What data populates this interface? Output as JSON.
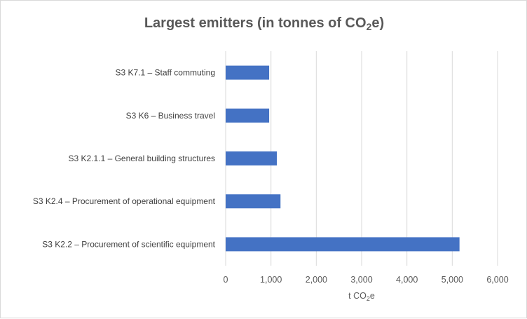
{
  "chart_data": {
    "type": "bar",
    "orientation": "horizontal",
    "title_prefix": "Largest emitters (in tonnes of CO",
    "title_sub": "2",
    "title_suffix": "e)",
    "xlabel_prefix": "t CO",
    "xlabel_sub": "2",
    "xlabel_suffix": "e",
    "ylabel": "",
    "categories": [
      "S3 K7.1 – Staff commuting",
      "S3 K6 – Business travel",
      "S3 K2.1.1 – General building structures",
      "S3 K2.4 – Procurement of operational equipment",
      "S3 K2.2 – Procurement of scientific equipment"
    ],
    "values": [
      960,
      960,
      1130,
      1210,
      5160
    ],
    "xlim": [
      0,
      6000
    ],
    "xticks": [
      0,
      1000,
      2000,
      3000,
      4000,
      5000,
      6000
    ],
    "xtick_labels": [
      "0",
      "1,000",
      "2,000",
      "3,000",
      "4,000",
      "5,000",
      "6,000"
    ],
    "grid": "vertical",
    "legend": "none",
    "bar_color": "#4472c4",
    "grid_color": "#d9d9d9"
  }
}
